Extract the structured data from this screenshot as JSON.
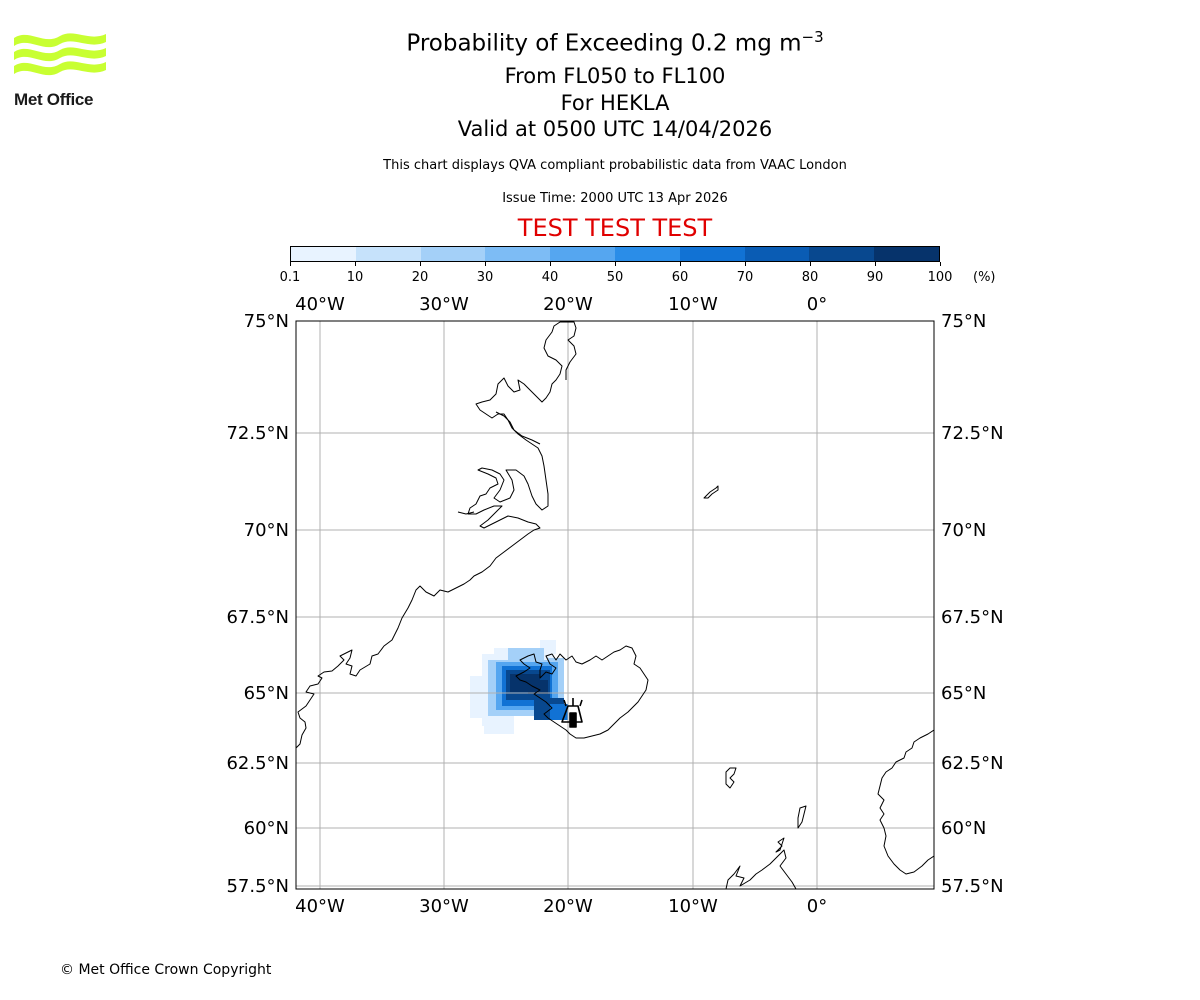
{
  "logo": {
    "text": "Met Office",
    "color": "#c8ff32"
  },
  "title": {
    "line1_prefix": "Probability of Exceeding 0.2 mg m",
    "line1_exp": "−3",
    "line2": "From FL050 to FL100",
    "line3": "For HEKLA",
    "line4": "Valid at 0500 UTC 14/04/2026"
  },
  "subtitle": "This chart displays QVA compliant probabilistic data from VAAC London",
  "issue_time": "Issue Time: 2000 UTC 13 Apr 2026",
  "test_banner": {
    "text": "TEST TEST TEST",
    "color": "#e00000"
  },
  "colorbar": {
    "labels": [
      "0.1",
      "10",
      "20",
      "30",
      "40",
      "50",
      "60",
      "70",
      "80",
      "90",
      "100"
    ],
    "unit": "(%)",
    "colors": [
      "#e8f3ff",
      "#c6e2fb",
      "#a4d0f8",
      "#7dbcf5",
      "#55a6f0",
      "#2a8de8",
      "#1172d4",
      "#0a5cb4",
      "#08488f",
      "#06336b"
    ]
  },
  "map": {
    "extent": {
      "lon": [
        -42,
        9.5
      ],
      "lat": [
        57.5,
        75
      ]
    },
    "lon_labels": [
      "40°W",
      "30°W",
      "20°W",
      "10°W",
      "0°"
    ],
    "lat_labels": [
      "57.5°N",
      "60°N",
      "62.5°N",
      "65°N",
      "67.5°N",
      "70°N",
      "72.5°N",
      "75°N"
    ],
    "grid_color": "#b0b0b0",
    "volcano": {
      "name": "HEKLA",
      "marker": "volcano-symbol"
    },
    "plume_levels_percent": [
      5,
      25,
      45,
      65,
      85,
      95
    ]
  },
  "copyright": "© Met Office Crown Copyright"
}
